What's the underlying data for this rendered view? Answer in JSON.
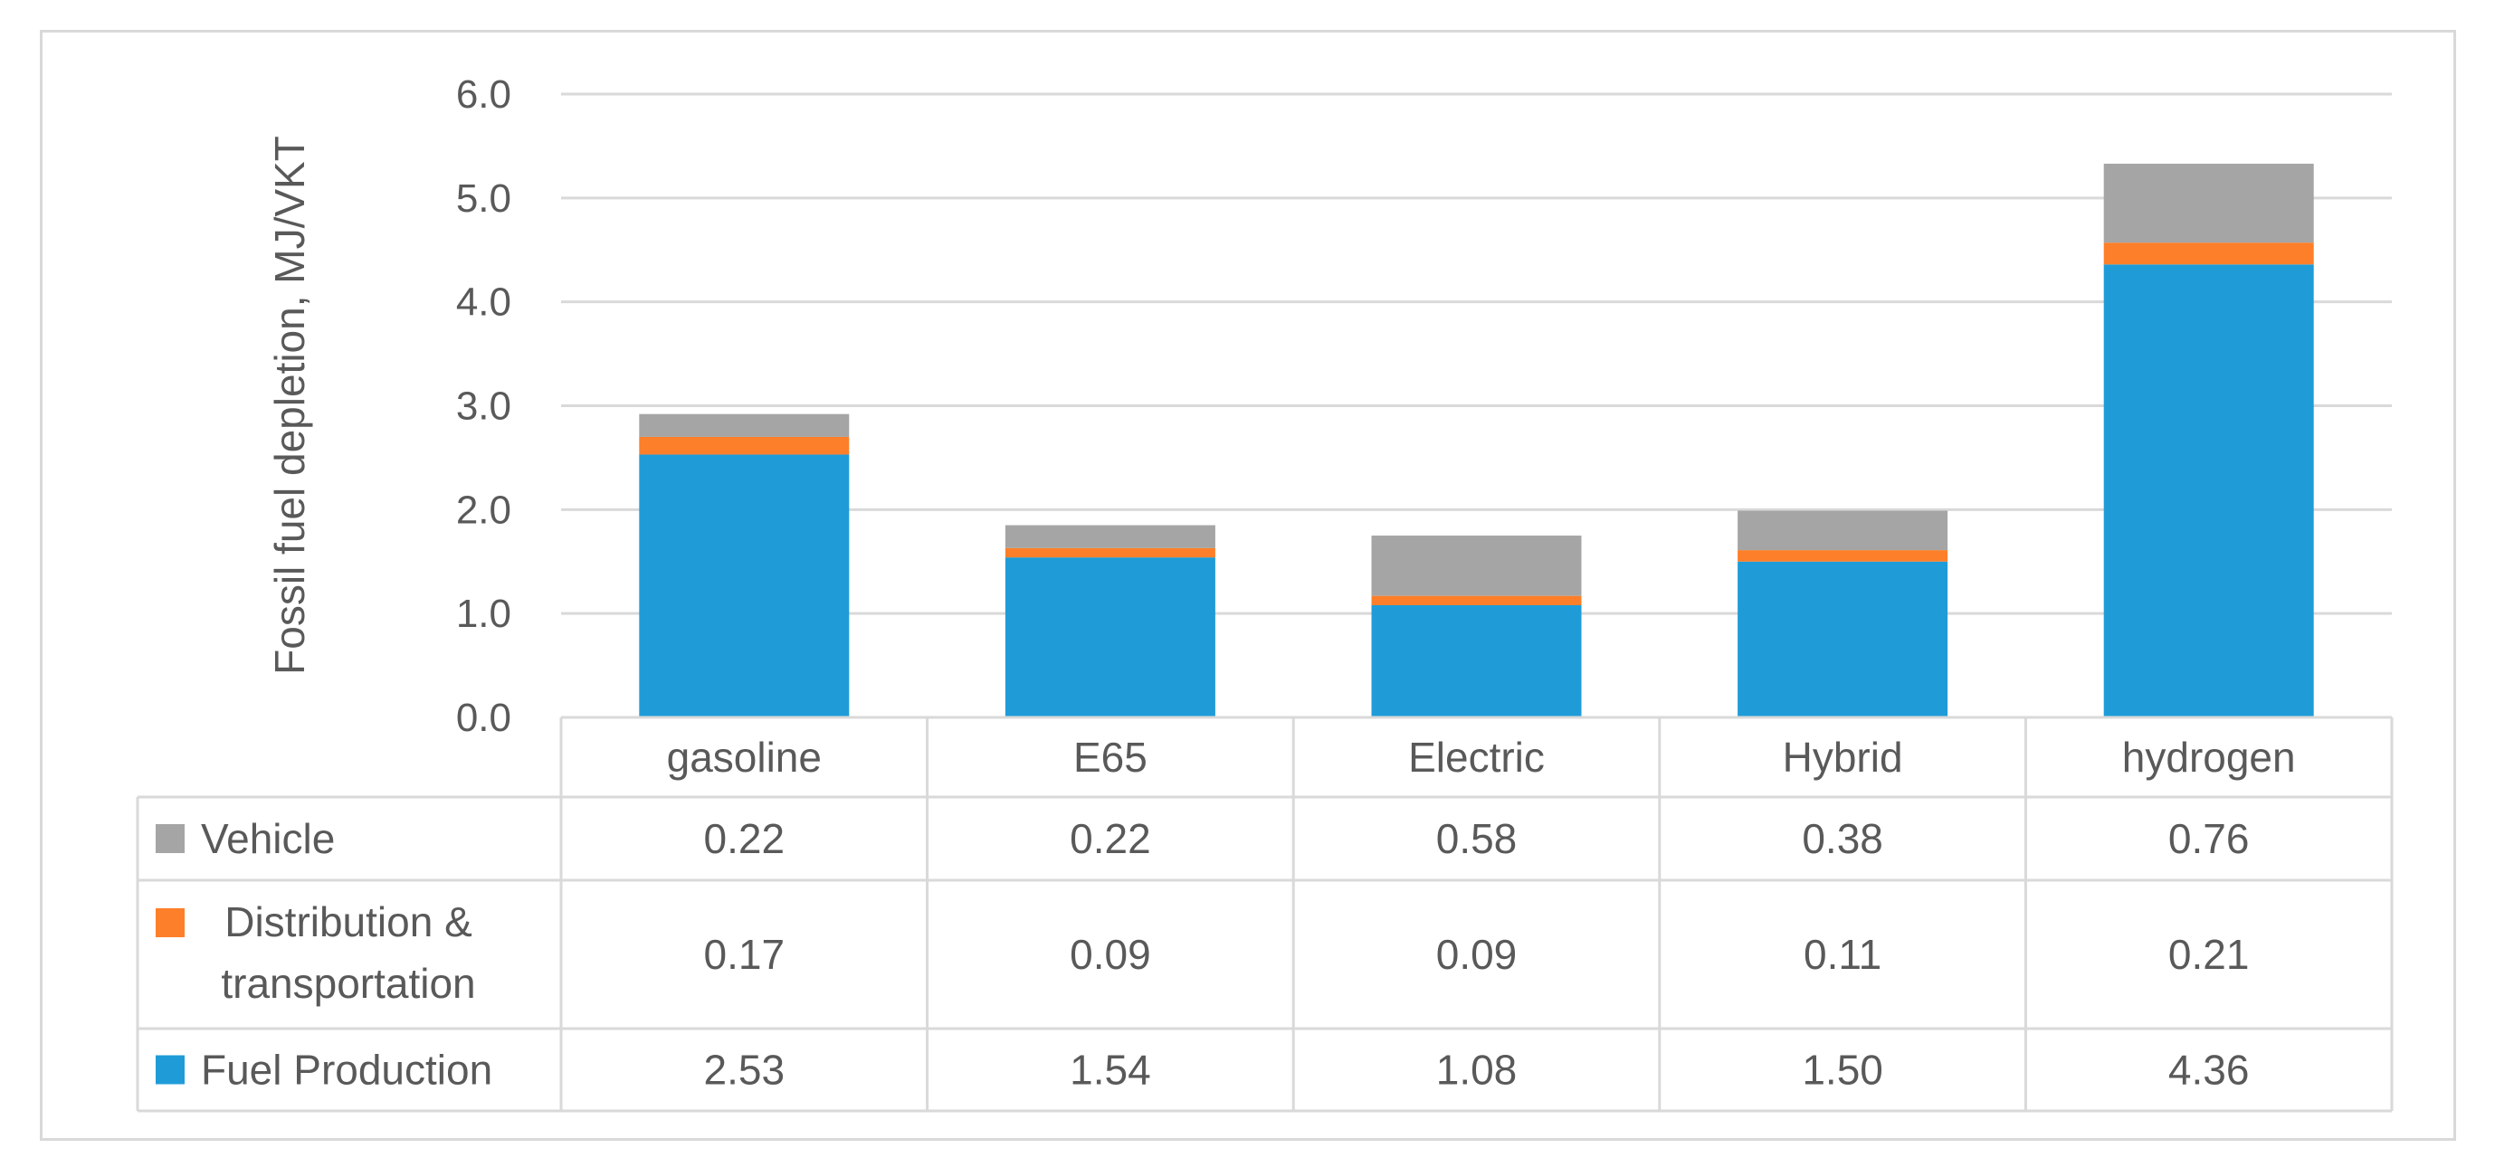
{
  "chart_data": {
    "type": "bar",
    "stacked": true,
    "ylabel": "Fossil fuel depletion, MJ/VKT",
    "ylim": [
      0,
      6
    ],
    "yticks": [
      "0.0",
      "1.0",
      "2.0",
      "3.0",
      "4.0",
      "5.0",
      "6.0"
    ],
    "grid": true,
    "categories": [
      "gasoline",
      "E65",
      "Electric",
      "Hybrid",
      "hydrogen"
    ],
    "series": [
      {
        "name": "Fuel Production",
        "color": "#1f9cd8",
        "values": [
          2.53,
          1.54,
          1.08,
          1.5,
          4.36
        ],
        "labels": [
          "2.53",
          "1.54",
          "1.08",
          "1.50",
          "4.36"
        ]
      },
      {
        "name": "Distribution & transportation",
        "name_lines": [
          "Distribution &",
          "transportation"
        ],
        "color": "#fd7f29",
        "values": [
          0.17,
          0.09,
          0.09,
          0.11,
          0.21
        ],
        "labels": [
          "0.17",
          "0.09",
          "0.09",
          "0.11",
          "0.21"
        ]
      },
      {
        "name": "Vehicle",
        "color": "#a5a5a5",
        "values": [
          0.22,
          0.22,
          0.58,
          0.38,
          0.76
        ],
        "labels": [
          "0.22",
          "0.22",
          "0.58",
          "0.38",
          "0.76"
        ]
      }
    ],
    "table_row_order": [
      "Vehicle",
      "Distribution & transportation",
      "Fuel Production"
    ],
    "data_table": true
  }
}
